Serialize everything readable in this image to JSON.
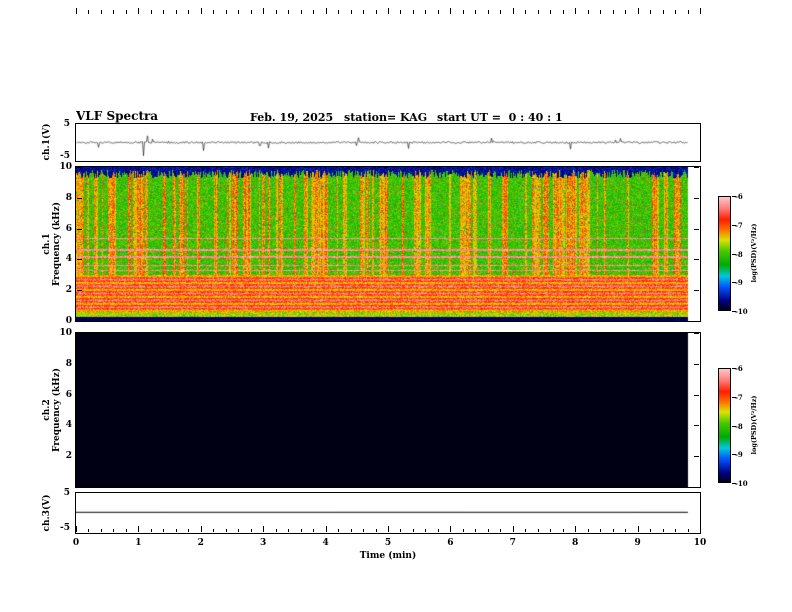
{
  "header": {
    "title": "VLF Spectra",
    "date": "Feb. 19, 2025",
    "station": "station= KAG",
    "start_ut": "start UT =  0 : 40 : 1"
  },
  "panels": {
    "ch1_wave": {
      "channel": "ch.1(V)",
      "ymax": "5",
      "ymin": "-5"
    },
    "ch1_spec": {
      "channel": "ch.1",
      "axis": "Frequency (kHz)",
      "yticks": [
        "10",
        "8",
        "6",
        "4",
        "2",
        "0"
      ]
    },
    "ch2_spec": {
      "channel": "ch.2",
      "axis": "Frequency (kHz)",
      "yticks": [
        "10",
        "8",
        "6",
        "4",
        "2"
      ]
    },
    "ch3_wave": {
      "channel": "ch.3(V)",
      "ymax": "5",
      "ymin": "-5"
    }
  },
  "xaxis": {
    "title": "Time (min)",
    "ticks": [
      "0",
      "1",
      "2",
      "3",
      "4",
      "5",
      "6",
      "7",
      "8",
      "9",
      "10"
    ],
    "range": [
      0,
      10
    ]
  },
  "colorbar": {
    "label": "log(PSD)(V²/Hz)",
    "ticks": [
      "-6",
      "-7",
      "-8",
      "-9",
      "-10"
    ]
  },
  "colors": {
    "frame": "#000000",
    "background": "#ffffff",
    "trace": "#000000"
  },
  "colormap": {
    "stops": [
      {
        "t": 0.0,
        "c": "#000014"
      },
      {
        "t": 0.08,
        "c": "#000080"
      },
      {
        "t": 0.2,
        "c": "#0050ff"
      },
      {
        "t": 0.3,
        "c": "#00c8dc"
      },
      {
        "t": 0.4,
        "c": "#00aa00"
      },
      {
        "t": 0.52,
        "c": "#46c800"
      },
      {
        "t": 0.62,
        "c": "#dce100"
      },
      {
        "t": 0.72,
        "c": "#ff6400"
      },
      {
        "t": 0.8,
        "c": "#ff1e00"
      },
      {
        "t": 0.9,
        "c": "#ff7d7d"
      },
      {
        "t": 1.0,
        "c": "#ffc8c8"
      }
    ]
  },
  "chart_data": [
    {
      "type": "line",
      "name": "ch.1 voltage waveform",
      "xlabel": "Time (min)",
      "x_range": [
        0,
        9.8
      ],
      "ylim": [
        -5,
        5
      ],
      "baseline": 0,
      "noise_amplitude_V": 0.4,
      "spikes": [
        {
          "t": 0.35,
          "amp": -1.3
        },
        {
          "t": 1.07,
          "amp": -3.6
        },
        {
          "t": 1.13,
          "amp": 1.8
        },
        {
          "t": 2.03,
          "amp": -2.2
        },
        {
          "t": 3.07,
          "amp": -1.5
        },
        {
          "t": 4.52,
          "amp": 1.3
        },
        {
          "t": 5.32,
          "amp": -1.6
        },
        {
          "t": 6.65,
          "amp": 1.2
        },
        {
          "t": 7.92,
          "amp": -1.8
        },
        {
          "t": 8.72,
          "amp": 1.1
        }
      ]
    },
    {
      "type": "heatmap",
      "name": "ch.1 spectrogram",
      "xlim": [
        0,
        9.8
      ],
      "ylim": [
        0,
        10
      ],
      "xlabel": "Time (min)",
      "ylabel": "Frequency (kHz)",
      "value_scale": {
        "label": "log(PSD)(V²/Hz)",
        "min": -10,
        "max": -6
      },
      "features": {
        "background_level": -8,
        "vertical_burst_level": -6.8,
        "burst_fraction": 0.45,
        "quiet_top_band_kHz": [
          9.5,
          10
        ],
        "enhanced_lines_kHz": [
          5.4,
          4.65,
          4.2,
          3.65,
          3.3
        ],
        "strong_band_kHz": [
          0.6,
          3.0
        ],
        "strong_band_level": -6.5,
        "bottom_black_band_kHz": [
          0,
          0.3
        ]
      }
    },
    {
      "type": "heatmap",
      "name": "ch.2 spectrogram",
      "xlim": [
        0,
        9.8
      ],
      "ylim": [
        0,
        10
      ],
      "uniform_level": -10,
      "value_scale": {
        "label": "log(PSD)(V²/Hz)",
        "min": -10,
        "max": -6
      }
    },
    {
      "type": "line",
      "name": "ch.3 voltage waveform",
      "xlim": [
        0,
        9.8
      ],
      "ylim": [
        -5,
        5
      ],
      "constant_value": 0.3
    }
  ]
}
